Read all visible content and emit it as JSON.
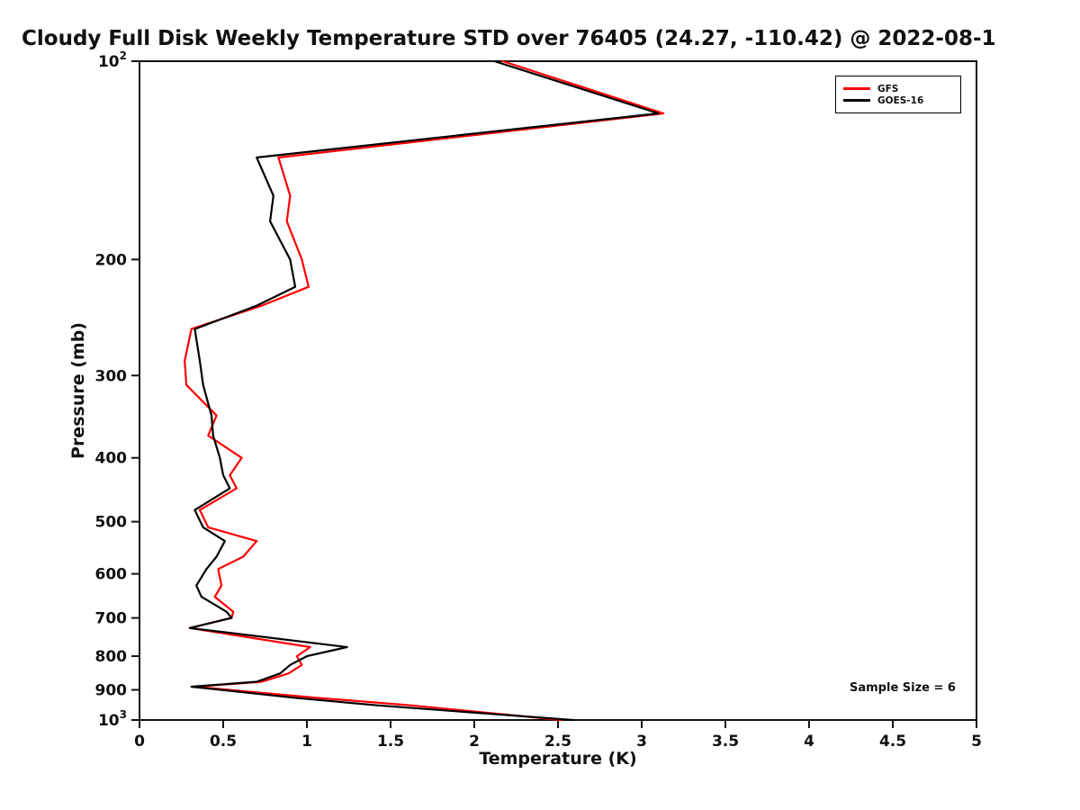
{
  "chart_data": {
    "type": "line",
    "title": "Cloudy Full Disk Weekly Temperature STD over 76405 (24.27, -110.42) @ 2022-08-1",
    "xlabel": "Temperature (K)",
    "ylabel": "Pressure (mb)",
    "x_axis": {
      "min": 0,
      "max": 5,
      "ticks": [
        0,
        0.5,
        1,
        1.5,
        2,
        2.5,
        3,
        3.5,
        4,
        4.5,
        5
      ],
      "tick_labels": [
        "0",
        "0.5",
        "1",
        "1.5",
        "2",
        "2.5",
        "3",
        "3.5",
        "4",
        "4.5",
        "5"
      ]
    },
    "y_axis": {
      "scale": "log",
      "min": 100,
      "max": 1000,
      "direction": "increasing-downward",
      "ticks": [
        {
          "value": 100,
          "label": "10",
          "exp": "2"
        },
        {
          "value": 200,
          "label": "200"
        },
        {
          "value": 300,
          "label": "300"
        },
        {
          "value": 400,
          "label": "400"
        },
        {
          "value": 500,
          "label": "500"
        },
        {
          "value": 600,
          "label": "600"
        },
        {
          "value": 700,
          "label": "700"
        },
        {
          "value": 800,
          "label": "800"
        },
        {
          "value": 900,
          "label": "900"
        },
        {
          "value": 1000,
          "label": "10",
          "exp": "3"
        }
      ]
    },
    "grid": false,
    "legend": {
      "position": "top-right",
      "entries": [
        {
          "name": "GFS",
          "color": "#ff0000"
        },
        {
          "name": "GOES-16",
          "color": "#000000"
        }
      ]
    },
    "annotation": "Sample Size = 6",
    "pressure_levels_mb": [
      100,
      120,
      140,
      160,
      175,
      200,
      220,
      235,
      255,
      285,
      310,
      345,
      370,
      400,
      425,
      445,
      480,
      510,
      535,
      565,
      590,
      625,
      650,
      685,
      700,
      725,
      775,
      800,
      825,
      850,
      875,
      890,
      925,
      950,
      1000
    ],
    "series": [
      {
        "name": "GFS",
        "color": "#ff0000",
        "values": [
          2.17,
          3.13,
          0.83,
          0.9,
          0.88,
          0.97,
          1.01,
          0.73,
          0.31,
          0.27,
          0.28,
          0.46,
          0.41,
          0.61,
          0.54,
          0.58,
          0.36,
          0.41,
          0.7,
          0.62,
          0.47,
          0.49,
          0.45,
          0.56,
          0.55,
          0.3,
          1.02,
          0.94,
          0.97,
          0.89,
          0.73,
          0.33,
          1.05,
          1.62,
          2.52
        ]
      },
      {
        "name": "GOES-16",
        "color": "#000000",
        "values": [
          2.12,
          3.1,
          0.7,
          0.8,
          0.78,
          0.9,
          0.93,
          0.7,
          0.33,
          0.36,
          0.38,
          0.43,
          0.44,
          0.48,
          0.5,
          0.54,
          0.33,
          0.38,
          0.51,
          0.46,
          0.4,
          0.34,
          0.37,
          0.52,
          0.55,
          0.3,
          1.24,
          1.0,
          0.9,
          0.84,
          0.7,
          0.31,
          0.92,
          1.42,
          2.59
        ]
      }
    ]
  }
}
